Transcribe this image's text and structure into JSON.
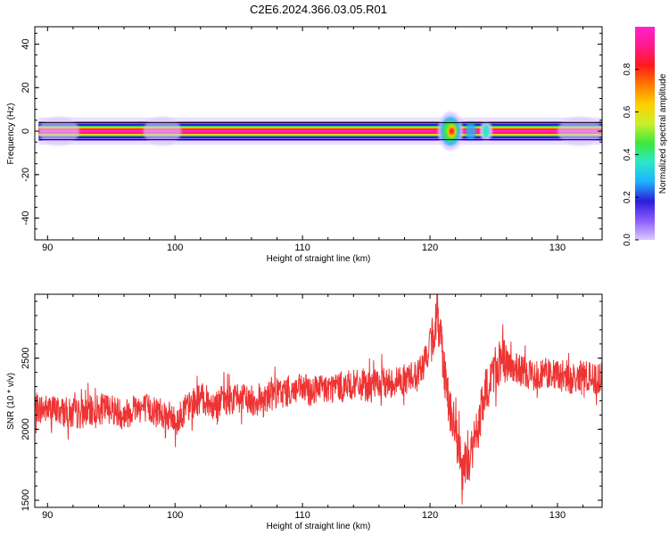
{
  "figure_title": "C2E6.2024.366.03.05.R01",
  "colors": {
    "snr_line": "#ee3333",
    "colormap": [
      "#ffffff",
      "#d9c8ff",
      "#8a5cff",
      "#2b1dd8",
      "#1fb2ff",
      "#29e8c8",
      "#3ce83c",
      "#c9f02a",
      "#ffd000",
      "#ff7a00",
      "#ff1a1a",
      "#ff1a8c",
      "#ff22cc"
    ]
  },
  "chart_data": [
    {
      "type": "heatmap",
      "title": "",
      "xlabel": "Height of straight line (km)",
      "ylabel": "Frequency (Hz)",
      "xlim": [
        89,
        133.5
      ],
      "ylim": [
        -50,
        48
      ],
      "xticks": [
        90,
        100,
        110,
        120,
        130
      ],
      "yticks": [
        -40,
        -20,
        0,
        20,
        40
      ],
      "zlabel": "Normalized spectral amplitude",
      "zlim": [
        0,
        1
      ],
      "zticks": [
        0.0,
        0.2,
        0.4,
        0.6,
        0.8
      ],
      "band_center_hz": 0,
      "band_halfwidth_hz": 1.5,
      "disturbance_km": [
        120.5,
        125.5
      ],
      "side_lobes_km": [
        [
          89.3,
          92.5
        ],
        [
          97.5,
          100.5
        ],
        [
          130,
          133.5
        ]
      ],
      "grid": false,
      "legend": "colorbar-right"
    },
    {
      "type": "line",
      "title": "",
      "xlabel": "Height of straight line (km)",
      "ylabel": "SNR (10 * v/v)",
      "xlim": [
        89,
        133.5
      ],
      "ylim": [
        1450,
        2950
      ],
      "xticks": [
        90,
        100,
        110,
        120,
        130
      ],
      "yticks": [
        1500,
        2000,
        2500
      ],
      "grid": false,
      "series": [
        {
          "x": [
            89,
            90,
            91,
            92,
            93,
            94,
            95,
            96,
            97,
            98,
            99,
            100,
            101,
            102,
            103,
            104,
            105,
            106,
            107,
            108,
            109,
            110,
            111,
            112,
            113,
            114,
            115,
            116,
            117,
            118,
            119,
            119.5,
            120,
            120.5,
            120.8,
            121,
            121.3,
            121.6,
            122,
            122.3,
            122.6,
            123,
            123.4,
            123.8,
            124.2,
            124.6,
            125,
            125.5,
            126,
            127,
            128,
            129,
            130,
            131,
            132,
            133,
            133.5
          ],
          "values": [
            2150,
            2140,
            2130,
            2100,
            2120,
            2140,
            2150,
            2100,
            2160,
            2140,
            2130,
            2050,
            2150,
            2220,
            2180,
            2210,
            2220,
            2200,
            2230,
            2250,
            2270,
            2280,
            2270,
            2290,
            2300,
            2310,
            2300,
            2320,
            2330,
            2350,
            2390,
            2460,
            2580,
            2760,
            2720,
            2520,
            2300,
            2120,
            1980,
            1830,
            1720,
            1780,
            1880,
            2020,
            2200,
            2320,
            2420,
            2480,
            2450,
            2420,
            2380,
            2400,
            2370,
            2350,
            2380,
            2350,
            2360
          ]
        }
      ]
    }
  ]
}
